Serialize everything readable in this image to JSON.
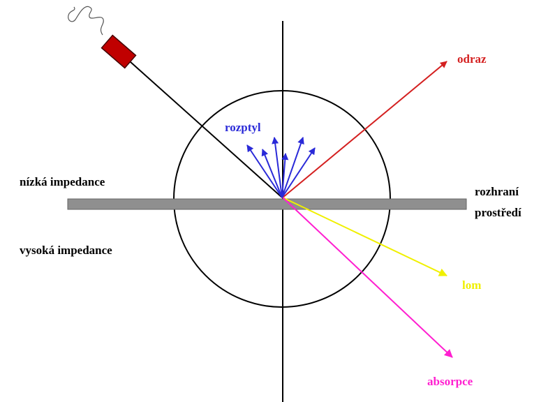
{
  "labels": {
    "reflection": "odraz",
    "scattering": "rozptyl",
    "low_impedance": "nízká impedance",
    "high_impedance": "vysoká impedance",
    "interface": [
      "rozhraní",
      "prostředí"
    ],
    "refraction": "lom",
    "absorption": "absorpce"
  }
}
